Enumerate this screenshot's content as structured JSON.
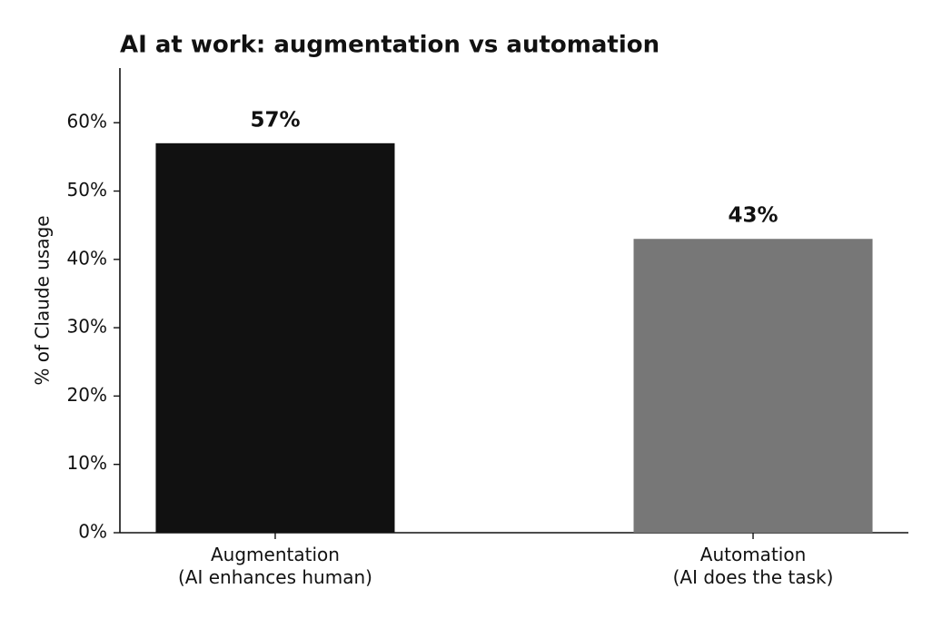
{
  "chart_data": {
    "type": "bar",
    "title": "AI at work: augmentation vs automation",
    "y_label": "% of Claude usage",
    "categories": [
      "Augmentation\n(AI enhances human)",
      "Automation\n(AI does the task)"
    ],
    "values": [
      57,
      43
    ],
    "value_labels": [
      "57%",
      "43%"
    ],
    "colors": [
      "#111111",
      "#777777"
    ],
    "ylim": [
      0,
      68
    ],
    "yticks": [
      {
        "value": 0,
        "label": "0%"
      },
      {
        "value": 10,
        "label": "10%"
      },
      {
        "value": 20,
        "label": "20%"
      },
      {
        "value": 30,
        "label": "30%"
      },
      {
        "value": 40,
        "label": "40%"
      },
      {
        "value": 50,
        "label": "50%"
      },
      {
        "value": 60,
        "label": "60%"
      }
    ],
    "grid": false
  }
}
